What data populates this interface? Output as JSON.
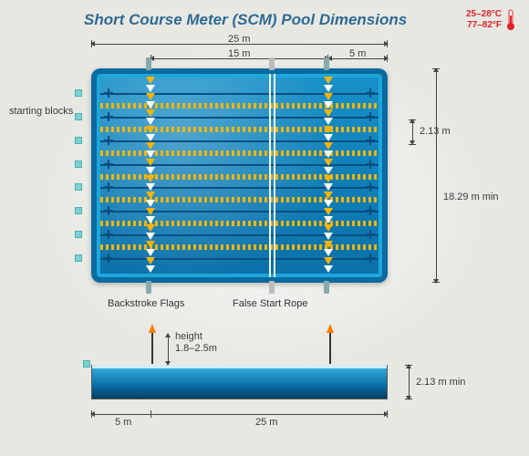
{
  "title": {
    "text": "Short Course Meter (SCM) Pool Dimensions",
    "color": "#2f6a93",
    "fontsize": 17
  },
  "temperature": {
    "line1": "25–28°C",
    "line2": "77–82°F",
    "color": "#e0222a"
  },
  "topview": {
    "width_m": 25,
    "height_m": 18.29,
    "label_total_width": "25 m",
    "label_mid_segment": "15 m",
    "label_end_segment": "5 m",
    "label_lane_width": "2.13 m",
    "label_total_height": "18.29 m min",
    "lanes": 8,
    "flag_colors": [
      "#ffb400",
      "#ffffff"
    ],
    "flag_offsets_m": [
      5,
      20
    ],
    "rope_offset_m": 15,
    "water_color": "#1891c9",
    "lane_color": "#0a4f80",
    "starting_blocks_label": "starting blocks",
    "backstroke_label": "Backstroke Flags",
    "false_start_label": "False Start Rope"
  },
  "sideview": {
    "label_total": "25 m",
    "label_end": "5 m",
    "label_depth": "2.13 m min",
    "label_height_title": "height",
    "label_height_range": "1.8–2.5m",
    "flag_color": "#ff7a00"
  }
}
